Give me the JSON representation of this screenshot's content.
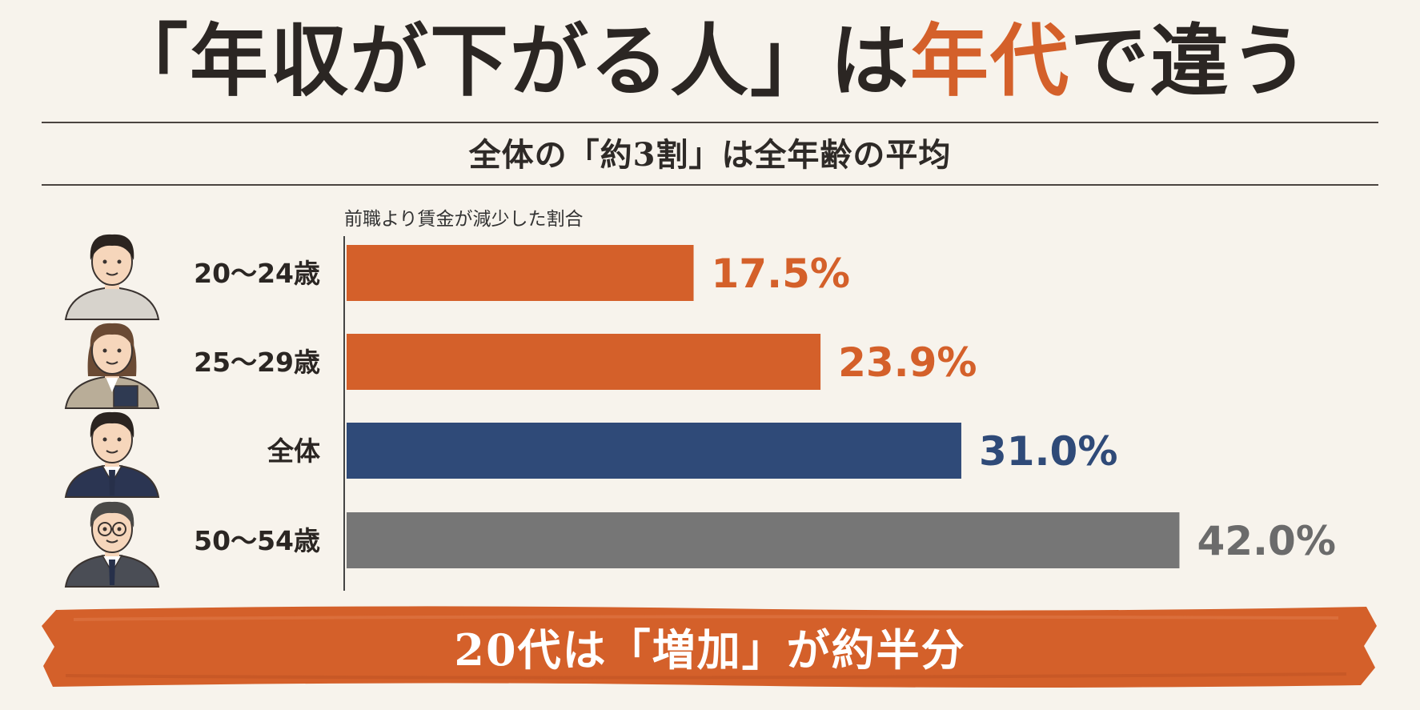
{
  "title": {
    "part1": "「年収が下がる人」は",
    "accent": "年代",
    "part2": "で違う"
  },
  "subtitle": "全体の「約3割」は全年齢の平均",
  "banner": "20代は「増加」が約半分",
  "colors": {
    "accent": "#d4602a",
    "navy": "#2f4a78",
    "gray": "#767676",
    "ink": "#2b2623"
  },
  "chart_data": {
    "type": "bar",
    "orientation": "horizontal",
    "ylabel": "前職より賃金が減少した割合",
    "categories": [
      "20〜24歳",
      "25〜29歳",
      "全体",
      "50〜54歳"
    ],
    "values": [
      17.5,
      23.9,
      31.0,
      42.0
    ],
    "value_labels": [
      "17.5%",
      "23.9%",
      "31.0%",
      "42.0%"
    ],
    "bar_colors": [
      "#d4602a",
      "#d4602a",
      "#2f4a78",
      "#767676"
    ],
    "label_colors": [
      "#d4602a",
      "#d4602a",
      "#2f4a78",
      "#6b6b6b"
    ],
    "avatars": [
      "young-man-hoodie",
      "young-woman-blazer",
      "man-suit",
      "older-man-glasses"
    ],
    "xlim": [
      0,
      44
    ],
    "grid": false,
    "legend": "none"
  }
}
